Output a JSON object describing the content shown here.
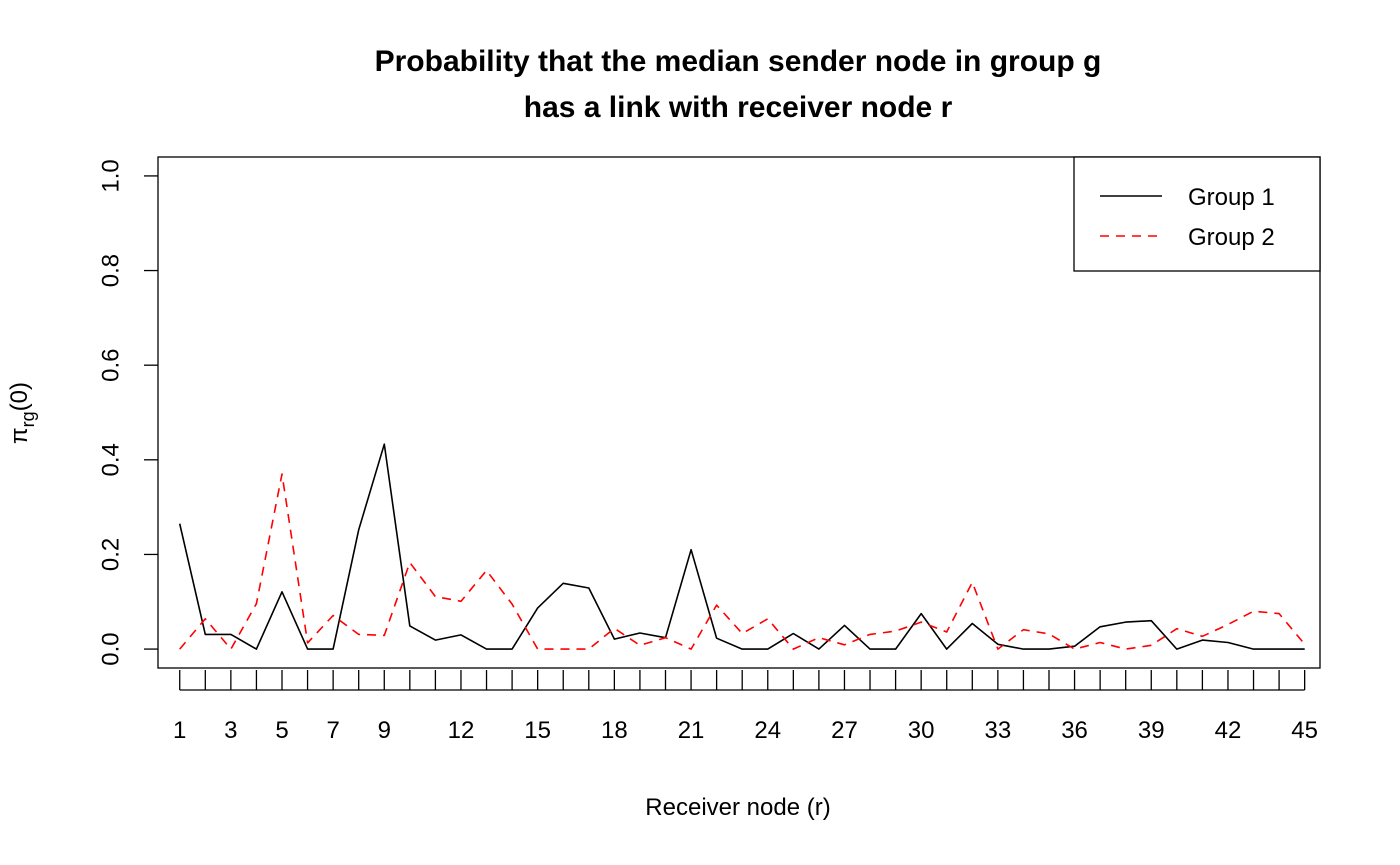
{
  "chart_data": {
    "type": "line",
    "title": [
      "Probability that the median sender node in group g",
      "has a link with receiver node r"
    ],
    "xlabel": "Receiver node (r)",
    "ylabel": "π_rg(0)",
    "ylabel_parts": {
      "base": "π",
      "sub": "rg",
      "rest": "(0)"
    },
    "xlim": [
      0.15,
      45.6
    ],
    "ylim": [
      -0.04,
      1.04
    ],
    "xticks": [
      1,
      2,
      3,
      4,
      5,
      6,
      7,
      8,
      9,
      10,
      11,
      12,
      13,
      14,
      15,
      16,
      17,
      18,
      19,
      20,
      21,
      22,
      23,
      24,
      25,
      26,
      27,
      28,
      29,
      30,
      31,
      32,
      33,
      34,
      35,
      36,
      37,
      38,
      39,
      40,
      41,
      42,
      43,
      44,
      45
    ],
    "xtick_labels": [
      "1",
      "3",
      "5",
      "7",
      "9",
      "12",
      "15",
      "18",
      "21",
      "24",
      "27",
      "30",
      "33",
      "36",
      "39",
      "42",
      "45"
    ],
    "xtick_label_at": [
      1,
      3,
      5,
      7,
      9,
      12,
      15,
      18,
      21,
      24,
      27,
      30,
      33,
      36,
      39,
      42,
      45
    ],
    "yticks": [
      0.0,
      0.2,
      0.4,
      0.6,
      0.8,
      1.0
    ],
    "ytick_labels": [
      "0.0",
      "0.2",
      "0.4",
      "0.6",
      "0.8",
      "1.0"
    ],
    "legend": {
      "position": "top-right"
    },
    "x": [
      1,
      2,
      3,
      4,
      5,
      6,
      7,
      8,
      9,
      10,
      11,
      12,
      13,
      14,
      15,
      16,
      17,
      18,
      19,
      20,
      21,
      22,
      23,
      24,
      25,
      26,
      27,
      28,
      29,
      30,
      31,
      32,
      33,
      34,
      35,
      36,
      37,
      38,
      39,
      40,
      41,
      42,
      43,
      44,
      45
    ],
    "series": [
      {
        "name": "Group 1",
        "color": "#000000",
        "dash": "solid",
        "values": [
          0.265,
          0.031,
          0.031,
          0.0,
          0.121,
          0.0,
          0.0,
          0.252,
          0.433,
          0.049,
          0.019,
          0.03,
          0.0,
          0.0,
          0.087,
          0.139,
          0.129,
          0.021,
          0.034,
          0.024,
          0.21,
          0.023,
          0.0,
          0.0,
          0.033,
          0.0,
          0.05,
          0.0,
          0.0,
          0.075,
          0.0,
          0.054,
          0.01,
          0.0,
          0.0,
          0.006,
          0.047,
          0.057,
          0.06,
          0.0,
          0.019,
          0.014,
          0.0,
          0.0,
          0.0
        ]
      },
      {
        "name": "Group 2",
        "color": "#ff0000",
        "dash": "dashed",
        "values": [
          0.0,
          0.064,
          0.0,
          0.096,
          0.37,
          0.013,
          0.071,
          0.031,
          0.029,
          0.183,
          0.111,
          0.101,
          0.166,
          0.095,
          0.0,
          0.0,
          0.0,
          0.044,
          0.008,
          0.024,
          0.0,
          0.093,
          0.033,
          0.064,
          0.0,
          0.024,
          0.009,
          0.031,
          0.038,
          0.057,
          0.036,
          0.141,
          0.0,
          0.041,
          0.032,
          0.0,
          0.014,
          0.0,
          0.008,
          0.043,
          0.027,
          0.052,
          0.08,
          0.075,
          0.01
        ]
      }
    ]
  }
}
